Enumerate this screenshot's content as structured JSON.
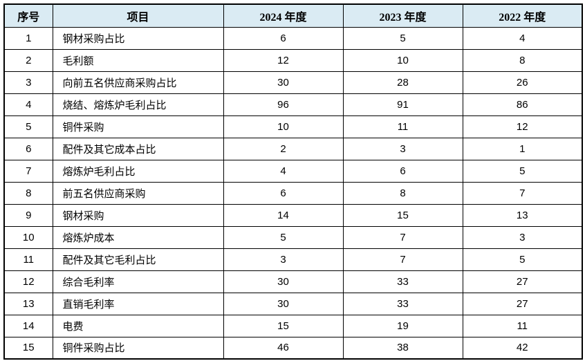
{
  "colors": {
    "header_background": "#daebf3",
    "border": "#000000",
    "text": "#000000",
    "page_background": "#ffffff"
  },
  "table": {
    "headers": [
      "序号",
      "项目",
      "2024 年度",
      "2023 年度",
      "2022 年度"
    ],
    "rows": [
      [
        "1",
        "钢材采购占比",
        "6",
        "5",
        "4"
      ],
      [
        "2",
        "毛利额",
        "12",
        "10",
        "8"
      ],
      [
        "3",
        "向前五名供应商采购占比",
        "30",
        "28",
        "26"
      ],
      [
        "4",
        "烧结、熔炼炉毛利占比",
        "96",
        "91",
        "86"
      ],
      [
        "5",
        "铜件采购",
        "10",
        "11",
        "12"
      ],
      [
        "6",
        "配件及其它成本占比",
        "2",
        "3",
        "1"
      ],
      [
        "7",
        "熔炼炉毛利占比",
        "4",
        "6",
        "5"
      ],
      [
        "8",
        "前五名供应商采购",
        "6",
        "8",
        "7"
      ],
      [
        "9",
        "钢材采购",
        "14",
        "15",
        "13"
      ],
      [
        "10",
        "熔炼炉成本",
        "5",
        "7",
        "3"
      ],
      [
        "11",
        "配件及其它毛利占比",
        "3",
        "7",
        "5"
      ],
      [
        "12",
        "综合毛利率",
        "30",
        "33",
        "27"
      ],
      [
        "13",
        "直销毛利率",
        "30",
        "33",
        "27"
      ],
      [
        "14",
        "电费",
        "15",
        "19",
        "11"
      ],
      [
        "15",
        "铜件采购占比",
        "46",
        "38",
        "42"
      ]
    ]
  },
  "chart_data": {
    "type": "table",
    "title": "",
    "columns": [
      "序号",
      "项目",
      "2024 年度",
      "2023 年度",
      "2022 年度"
    ],
    "categories": [
      "钢材采购占比",
      "毛利额",
      "向前五名供应商采购占比",
      "烧结、熔炼炉毛利占比",
      "铜件采购",
      "配件及其它成本占比",
      "熔炼炉毛利占比",
      "前五名供应商采购",
      "钢材采购",
      "熔炼炉成本",
      "配件及其它毛利占比",
      "综合毛利率",
      "直销毛利率",
      "电费",
      "铜件采购占比"
    ],
    "series": [
      {
        "name": "2024 年度",
        "values": [
          6,
          12,
          30,
          96,
          10,
          2,
          4,
          6,
          14,
          5,
          3,
          30,
          30,
          15,
          46
        ]
      },
      {
        "name": "2023 年度",
        "values": [
          5,
          10,
          28,
          91,
          11,
          3,
          6,
          8,
          15,
          7,
          7,
          33,
          33,
          19,
          38
        ]
      },
      {
        "name": "2022 年度",
        "values": [
          4,
          8,
          26,
          86,
          12,
          1,
          5,
          7,
          13,
          3,
          5,
          27,
          27,
          11,
          42
        ]
      }
    ]
  }
}
